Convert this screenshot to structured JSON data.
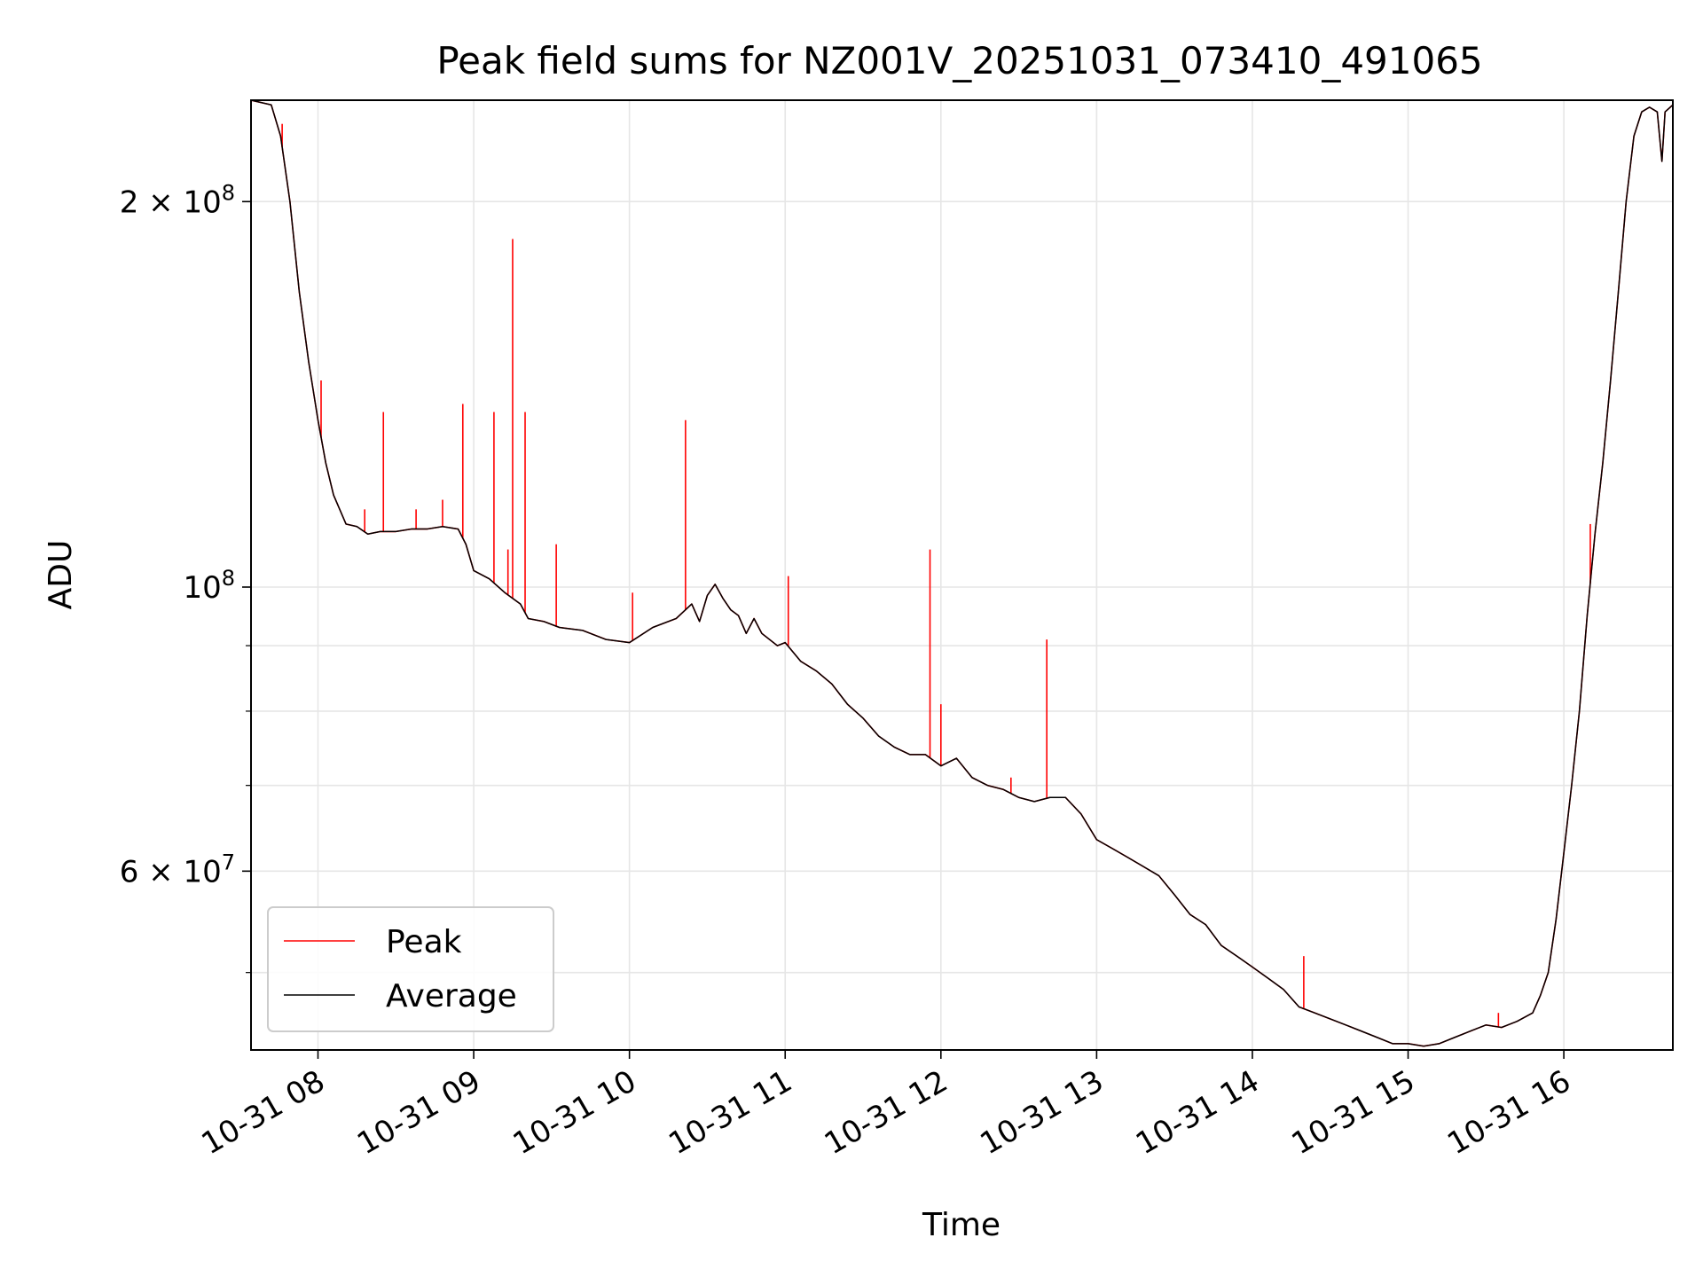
{
  "chart_data": {
    "type": "line",
    "title": "Peak field sums for NZ001V_20251031_073410_491065",
    "xlabel": "Time",
    "ylabel": "ADU",
    "y_scale": "log",
    "xlim_hours": [
      7.57,
      16.7
    ],
    "ylim": [
      43500000,
      240000000
    ],
    "x_ticks": [
      {
        "hour": 8,
        "label": "10-31 08"
      },
      {
        "hour": 9,
        "label": "10-31 09"
      },
      {
        "hour": 10,
        "label": "10-31 10"
      },
      {
        "hour": 11,
        "label": "10-31 11"
      },
      {
        "hour": 12,
        "label": "10-31 12"
      },
      {
        "hour": 13,
        "label": "10-31 13"
      },
      {
        "hour": 14,
        "label": "10-31 14"
      },
      {
        "hour": 15,
        "label": "10-31 15"
      },
      {
        "hour": 16,
        "label": "10-31 16"
      }
    ],
    "y_major_ticks": [
      {
        "value": 200000000,
        "label_base": "2 × 10",
        "label_exp": "8"
      },
      {
        "value": 100000000,
        "label_base": "10",
        "label_exp": "8"
      },
      {
        "value": 60000000,
        "label_base": "6 × 10",
        "label_exp": "7"
      }
    ],
    "y_minor_ticks": [
      50000000,
      70000000,
      80000000,
      90000000
    ],
    "grid": true,
    "legend": {
      "position": "lower-left",
      "entries": [
        "Peak",
        "Average"
      ]
    },
    "colors": {
      "peak": "#ff0000",
      "average": "#000000",
      "grid": "#e6e6e6"
    },
    "series": [
      {
        "name": "Average",
        "x": [
          7.57,
          7.7,
          7.76,
          7.82,
          7.88,
          7.94,
          8.0,
          8.05,
          8.1,
          8.18,
          8.25,
          8.32,
          8.4,
          8.5,
          8.6,
          8.7,
          8.8,
          8.9,
          8.95,
          9.0,
          9.1,
          9.2,
          9.3,
          9.35,
          9.45,
          9.55,
          9.7,
          9.85,
          10.0,
          10.15,
          10.3,
          10.4,
          10.45,
          10.5,
          10.55,
          10.6,
          10.65,
          10.7,
          10.75,
          10.8,
          10.85,
          10.95,
          11.0,
          11.1,
          11.2,
          11.3,
          11.4,
          11.5,
          11.6,
          11.7,
          11.8,
          11.9,
          12.0,
          12.1,
          12.2,
          12.3,
          12.4,
          12.5,
          12.6,
          12.7,
          12.8,
          12.9,
          13.0,
          13.1,
          13.2,
          13.3,
          13.4,
          13.5,
          13.6,
          13.7,
          13.8,
          13.9,
          14.0,
          14.1,
          14.2,
          14.3,
          14.4,
          14.5,
          14.6,
          14.7,
          14.8,
          14.9,
          15.0,
          15.1,
          15.2,
          15.3,
          15.4,
          15.5,
          15.6,
          15.7,
          15.8,
          15.85,
          15.9,
          15.95,
          16.0,
          16.05,
          16.1,
          16.15,
          16.2,
          16.25,
          16.3,
          16.35,
          16.4,
          16.45,
          16.5,
          16.55,
          16.6,
          16.63,
          16.65,
          16.7
        ],
        "values": [
          240000000,
          238000000,
          225000000,
          200000000,
          170000000,
          150000000,
          135000000,
          125000000,
          118000000,
          112000000,
          111500000,
          110000000,
          110500000,
          110500000,
          111000000,
          111000000,
          111500000,
          111000000,
          108000000,
          103000000,
          101500000,
          99000000,
          97000000,
          94500000,
          94000000,
          93000000,
          92500000,
          91000000,
          90500000,
          93000000,
          94500000,
          97000000,
          94000000,
          98500000,
          100500000,
          98000000,
          96000000,
          95000000,
          92000000,
          94500000,
          92000000,
          90000000,
          90500000,
          87500000,
          86000000,
          84000000,
          81000000,
          79000000,
          76500000,
          75000000,
          74000000,
          74000000,
          72500000,
          73500000,
          71000000,
          70000000,
          69500000,
          68500000,
          68000000,
          68500000,
          68500000,
          66500000,
          63500000,
          62500000,
          61500000,
          60500000,
          59500000,
          57500000,
          55500000,
          54500000,
          52500000,
          51500000,
          50500000,
          49500000,
          48500000,
          47000000,
          46500000,
          46000000,
          45500000,
          45000000,
          44500000,
          44000000,
          44000000,
          43800000,
          44000000,
          44500000,
          45000000,
          45500000,
          45300000,
          45800000,
          46500000,
          48000000,
          50000000,
          55000000,
          62000000,
          70000000,
          80000000,
          95000000,
          110000000,
          125000000,
          145000000,
          170000000,
          200000000,
          225000000,
          235000000,
          237000000,
          235000000,
          215000000,
          235000000,
          238000000
        ]
      },
      {
        "name": "Peak",
        "x": [
          7.57,
          7.7,
          7.76,
          7.82,
          7.88,
          7.94,
          8.0,
          8.05,
          8.1,
          8.18,
          8.25,
          8.32,
          8.4,
          8.5,
          8.6,
          8.7,
          8.8,
          8.9,
          8.95,
          9.0,
          9.1,
          9.2,
          9.3,
          9.35,
          9.45,
          9.55,
          9.7,
          9.85,
          10.0,
          10.15,
          10.3,
          10.4,
          10.45,
          10.5,
          10.55,
          10.6,
          10.65,
          10.7,
          10.75,
          10.8,
          10.85,
          10.95,
          11.0,
          11.1,
          11.2,
          11.3,
          11.4,
          11.5,
          11.6,
          11.7,
          11.8,
          11.9,
          12.0,
          12.1,
          12.2,
          12.3,
          12.4,
          12.5,
          12.6,
          12.7,
          12.8,
          12.9,
          13.0,
          13.1,
          13.2,
          13.3,
          13.4,
          13.5,
          13.6,
          13.7,
          13.8,
          13.9,
          14.0,
          14.1,
          14.2,
          14.3,
          14.4,
          14.5,
          14.6,
          14.7,
          14.8,
          14.9,
          15.0,
          15.1,
          15.2,
          15.3,
          15.4,
          15.5,
          15.6,
          15.7,
          15.8,
          15.85,
          15.9,
          15.95,
          16.0,
          16.05,
          16.1,
          16.15,
          16.2,
          16.25,
          16.3,
          16.35,
          16.4,
          16.45,
          16.5,
          16.55,
          16.6,
          16.63,
          16.65,
          16.7
        ],
        "values": [
          240000000,
          238000000,
          225000000,
          200000000,
          170000000,
          150000000,
          135000000,
          125000000,
          118000000,
          112000000,
          111500000,
          110000000,
          110500000,
          110500000,
          111000000,
          111000000,
          111500000,
          111000000,
          108000000,
          103000000,
          101500000,
          99000000,
          97000000,
          94500000,
          94000000,
          93000000,
          92500000,
          91000000,
          90500000,
          93000000,
          94500000,
          97000000,
          94000000,
          98500000,
          100500000,
          98000000,
          96000000,
          95000000,
          92000000,
          94500000,
          92000000,
          90000000,
          90500000,
          87500000,
          86000000,
          84000000,
          81000000,
          79000000,
          76500000,
          75000000,
          74000000,
          74000000,
          72500000,
          73500000,
          71000000,
          70000000,
          69500000,
          68500000,
          68000000,
          68500000,
          68500000,
          66500000,
          63500000,
          62500000,
          61500000,
          60500000,
          59500000,
          57500000,
          55500000,
          54500000,
          52500000,
          51500000,
          50500000,
          49500000,
          48500000,
          47000000,
          46500000,
          46000000,
          45500000,
          45000000,
          44500000,
          44000000,
          44000000,
          43800000,
          44000000,
          44500000,
          45000000,
          45500000,
          45300000,
          45800000,
          46500000,
          48000000,
          50000000,
          55000000,
          62000000,
          70000000,
          80000000,
          95000000,
          110000000,
          125000000,
          145000000,
          170000000,
          200000000,
          225000000,
          235000000,
          237000000,
          235000000,
          215000000,
          235000000,
          238000000
        ],
        "spikes": [
          {
            "hour": 7.77,
            "value": 230000000
          },
          {
            "hour": 8.02,
            "value": 145000000
          },
          {
            "hour": 8.3,
            "value": 115000000
          },
          {
            "hour": 8.42,
            "value": 137000000
          },
          {
            "hour": 8.63,
            "value": 115000000
          },
          {
            "hour": 8.8,
            "value": 117000000
          },
          {
            "hour": 8.93,
            "value": 139000000
          },
          {
            "hour": 9.13,
            "value": 137000000
          },
          {
            "hour": 9.22,
            "value": 107000000
          },
          {
            "hour": 9.25,
            "value": 187000000
          },
          {
            "hour": 9.33,
            "value": 137000000
          },
          {
            "hour": 9.53,
            "value": 108000000
          },
          {
            "hour": 10.02,
            "value": 99000000
          },
          {
            "hour": 10.36,
            "value": 135000000
          },
          {
            "hour": 11.02,
            "value": 102000000
          },
          {
            "hour": 11.93,
            "value": 107000000
          },
          {
            "hour": 12.0,
            "value": 81000000
          },
          {
            "hour": 12.45,
            "value": 71000000
          },
          {
            "hour": 12.68,
            "value": 91000000
          },
          {
            "hour": 14.33,
            "value": 51500000
          },
          {
            "hour": 15.58,
            "value": 46500000
          },
          {
            "hour": 16.17,
            "value": 112000000
          }
        ]
      }
    ]
  }
}
